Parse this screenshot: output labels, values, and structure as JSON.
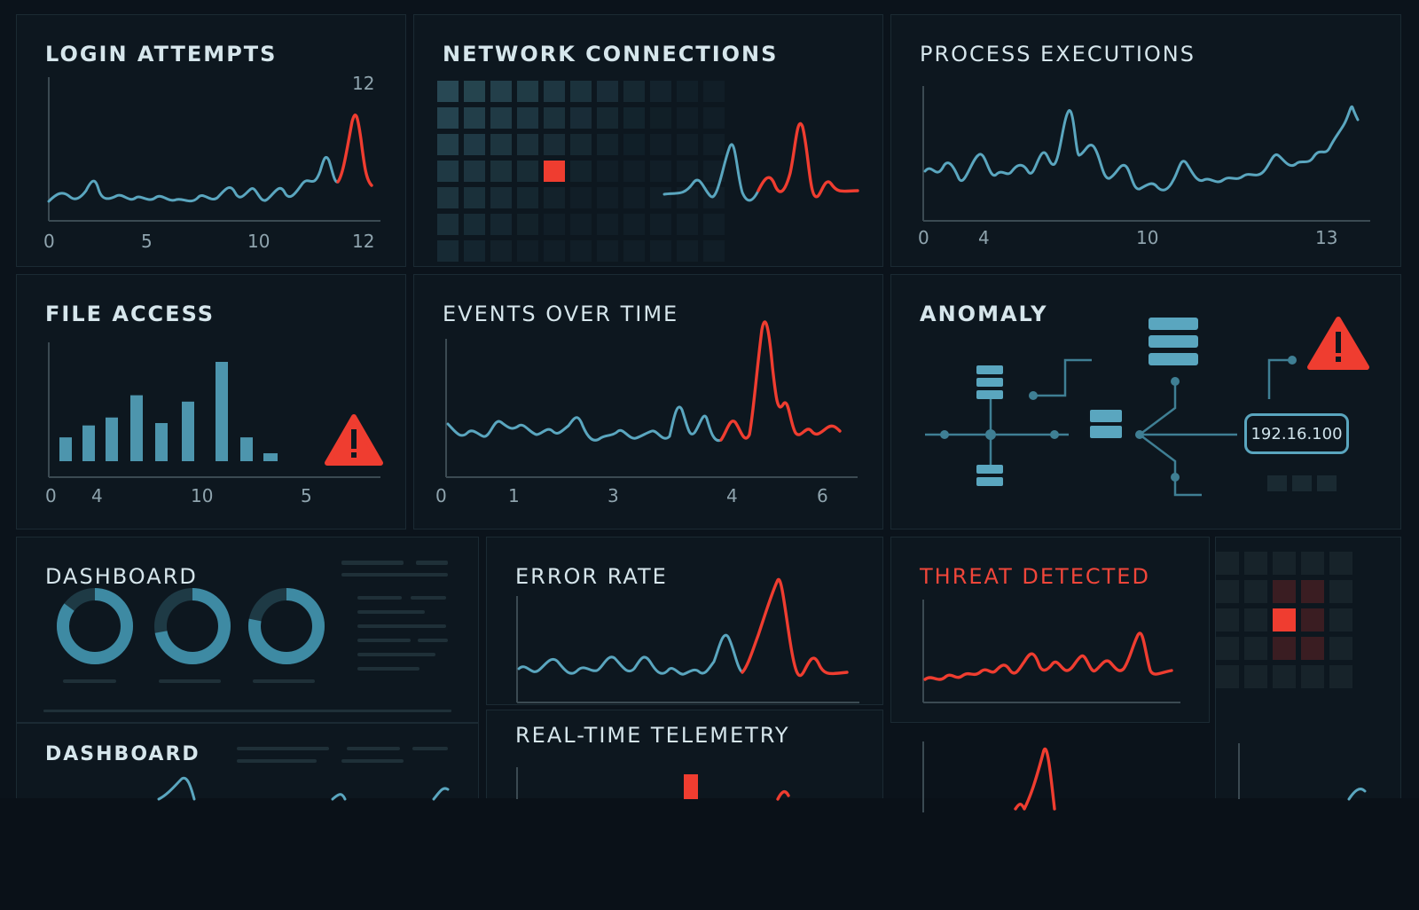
{
  "colors": {
    "accent": "#5aa6bf",
    "alert": "#ef3d30",
    "background": "#0b131b"
  },
  "panels": {
    "login_attempts": {
      "title": "LOGIN ATTEMPTS",
      "peak_label": "12",
      "x_ticks": [
        "0",
        "5",
        "10",
        "12"
      ]
    },
    "network_connections": {
      "title": "NETWORK CONNECTIONS"
    },
    "process_executions": {
      "title": "PROCESS EXECUTIONS",
      "x_ticks": [
        "0",
        "4",
        "10",
        "13"
      ]
    },
    "file_access": {
      "title": "FILE ACCESS",
      "x_ticks": [
        "0",
        "4",
        "10",
        "5"
      ],
      "bar_values": [
        3,
        4.5,
        5.5,
        8.3,
        4.8,
        7.5,
        12.5,
        3,
        1
      ],
      "alert_icon": "warning-icon"
    },
    "events_over_time": {
      "title": "EVENTS OVER TIME",
      "x_ticks": [
        "0",
        "1",
        "3",
        "4",
        "6"
      ]
    },
    "anomaly": {
      "title": "ANOMALY",
      "ip_address": "192.16.100",
      "icons": [
        "server-icon",
        "warning-icon"
      ]
    },
    "dashboard_donuts": {
      "title": "DASHBOARD",
      "donut_fractions": [
        0.85,
        0.72,
        0.78
      ]
    },
    "error_rate": {
      "title": "ERROR RATE"
    },
    "threat_detected": {
      "title": "THREAT DETECTED"
    },
    "dashboard_lower": {
      "title": "DASHBOARD"
    },
    "telemetry": {
      "title": "REAL-TIME TELEMETRY"
    }
  }
}
